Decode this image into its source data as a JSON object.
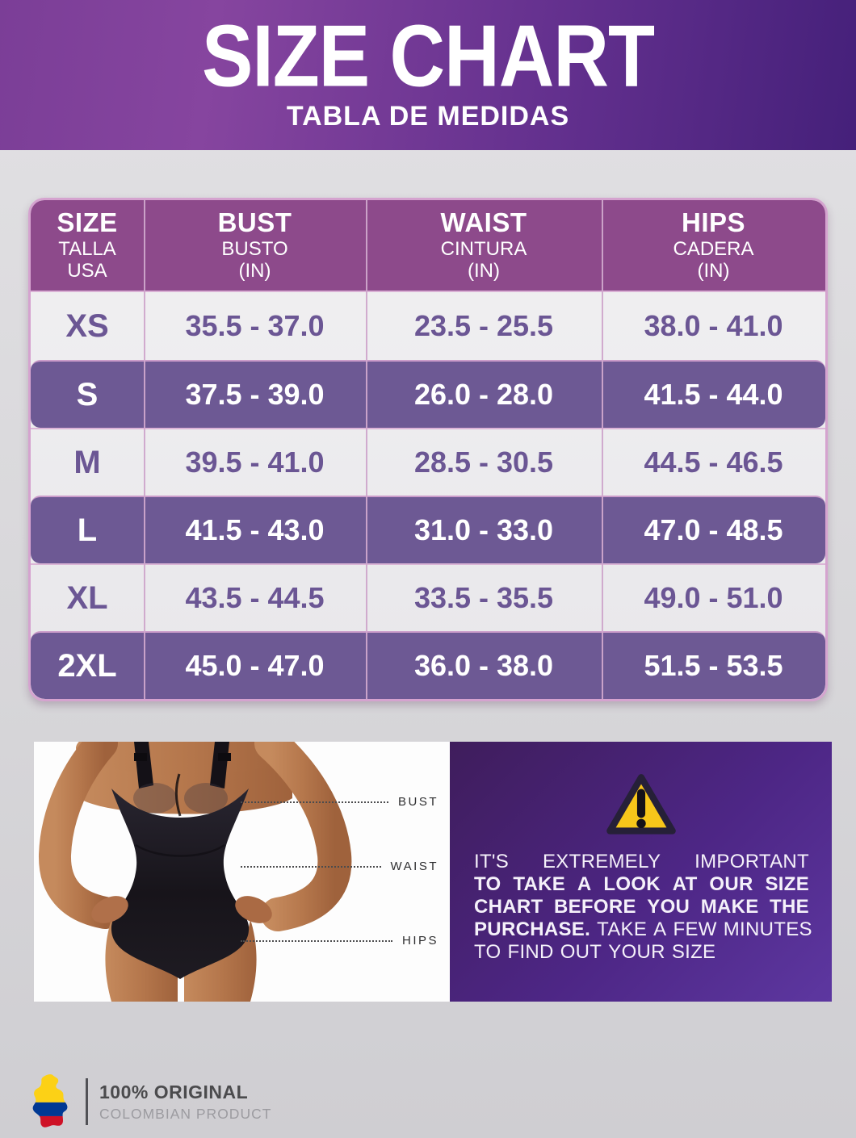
{
  "banner": {
    "title": "SIZE CHART",
    "subtitle": "TABLA DE MEDIDAS"
  },
  "table": {
    "headers": [
      {
        "main": "SIZE",
        "sub1": "TALLA",
        "sub2": "USA"
      },
      {
        "main": "BUST",
        "sub1": "BUSTO",
        "sub2": "(IN)"
      },
      {
        "main": "WAIST",
        "sub1": "CINTURA",
        "sub2": "(IN)"
      },
      {
        "main": "HIPS",
        "sub1": "CADERA",
        "sub2": "(IN)"
      }
    ],
    "rows": [
      {
        "size": "XS",
        "bust": "35.5 - 37.0",
        "waist": "23.5 - 25.5",
        "hips": "38.0 - 41.0",
        "highlight": false
      },
      {
        "size": "S",
        "bust": "37.5 - 39.0",
        "waist": "26.0 - 28.0",
        "hips": "41.5 - 44.0",
        "highlight": true
      },
      {
        "size": "M",
        "bust": "39.5 - 41.0",
        "waist": "28.5 - 30.5",
        "hips": "44.5 - 46.5",
        "highlight": false
      },
      {
        "size": "L",
        "bust": "41.5 - 43.0",
        "waist": "31.0 - 33.0",
        "hips": "47.0 - 48.5",
        "highlight": true
      },
      {
        "size": "XL",
        "bust": "43.5 - 44.5",
        "waist": "33.5 - 35.5",
        "hips": "49.0 - 51.0",
        "highlight": false
      },
      {
        "size": "2XL",
        "bust": "45.0 - 47.0",
        "waist": "36.0 - 38.0",
        "hips": "51.5 - 53.5",
        "highlight": true
      }
    ]
  },
  "figure": {
    "labels": [
      "BUST",
      "WAIST",
      "HIPS"
    ]
  },
  "warning": {
    "lines": [
      {
        "justify": true,
        "words": [
          {
            "t": "IT'S",
            "b": false
          },
          {
            "t": "EXTREMELY",
            "b": false
          },
          {
            "t": "IMPORTANT",
            "b": false
          }
        ]
      },
      {
        "justify": true,
        "words": [
          {
            "t": "TO",
            "b": true
          },
          {
            "t": "TAKE",
            "b": true
          },
          {
            "t": "A",
            "b": true
          },
          {
            "t": "LOOK",
            "b": true
          },
          {
            "t": "AT",
            "b": true
          },
          {
            "t": "OUR",
            "b": true
          },
          {
            "t": "SIZE",
            "b": true
          }
        ]
      },
      {
        "justify": true,
        "words": [
          {
            "t": "CHART",
            "b": true
          },
          {
            "t": "BEFORE",
            "b": true
          },
          {
            "t": "YOU",
            "b": true
          },
          {
            "t": "MAKE",
            "b": true
          },
          {
            "t": "THE",
            "b": true
          }
        ]
      },
      {
        "justify": true,
        "words": [
          {
            "t": "PURCHASE.",
            "b": true
          },
          {
            "t": "TAKE",
            "b": false
          },
          {
            "t": "A",
            "b": false
          },
          {
            "t": "FEW",
            "b": false
          },
          {
            "t": "MINUTES",
            "b": false
          }
        ]
      },
      {
        "justify": false,
        "words": [
          {
            "t": "TO",
            "b": false
          },
          {
            "t": "FIND",
            "b": false
          },
          {
            "t": "OUT",
            "b": false
          },
          {
            "t": "YOUR",
            "b": false
          },
          {
            "t": "SIZE",
            "b": false
          }
        ]
      }
    ]
  },
  "badge": {
    "line1": "100% ORIGINAL",
    "line2": "COLOMBIAN PRODUCT"
  },
  "icons": [
    "warning-triangle-icon",
    "colombia-map-icon",
    "woman-bodysuit-illustration"
  ],
  "colors": {
    "banner_gradient_left": "#7b3e97",
    "banner_gradient_right": "#45207a",
    "table_header": "#8d4a8b",
    "table_border_pink": "#d5a3cf",
    "row_light": "#eeedef",
    "row_highlight": "#6d5994",
    "row_text_purple": "#6b5694",
    "panel_purple": "#4d2685",
    "warning_yellow": "#f7c61a",
    "flag_yellow": "#fcd116",
    "flag_blue": "#003893",
    "flag_red": "#ce1126"
  },
  "chart_data": {
    "type": "table",
    "title": "SIZE CHART / TABLA DE MEDIDAS",
    "columns": [
      "SIZE (TALLA USA)",
      "BUST / BUSTO (IN)",
      "WAIST / CINTURA (IN)",
      "HIPS / CADERA (IN)"
    ],
    "rows": [
      [
        "XS",
        "35.5 - 37.0",
        "23.5 - 25.5",
        "38.0 - 41.0"
      ],
      [
        "S",
        "37.5 - 39.0",
        "26.0 - 28.0",
        "41.5 - 44.0"
      ],
      [
        "M",
        "39.5 - 41.0",
        "28.5 - 30.5",
        "44.5 - 46.5"
      ],
      [
        "L",
        "41.5 - 43.0",
        "31.0 - 33.0",
        "47.0 - 48.5"
      ],
      [
        "XL",
        "43.5 - 44.5",
        "33.5 - 35.5",
        "49.0 - 51.0"
      ],
      [
        "2XL",
        "45.0 - 47.0",
        "36.0 - 38.0",
        "51.5 - 53.5"
      ]
    ]
  }
}
